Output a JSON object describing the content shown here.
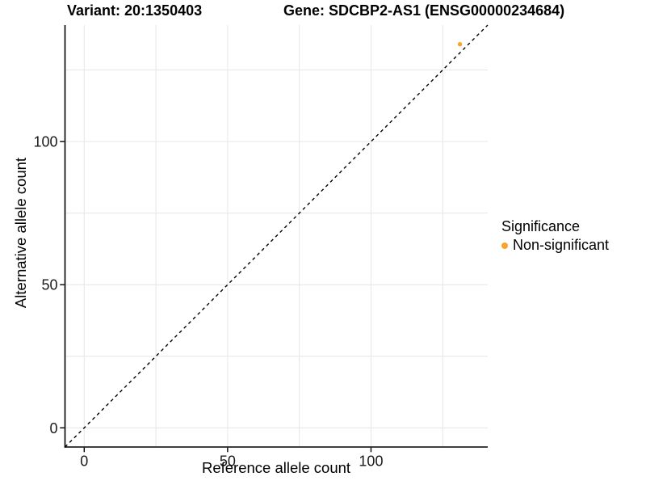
{
  "titles": {
    "variant": "Variant: 20:1350403",
    "gene": "Gene: SDCBP2-AS1 (ENSG00000234684)"
  },
  "chart_data": {
    "type": "scatter",
    "xlabel": "Reference allele count",
    "ylabel": "Alternative allele count",
    "xlim": [
      -6.7,
      140.7
    ],
    "ylim": [
      -6.7,
      140.7
    ],
    "xticks": [
      0,
      50,
      100
    ],
    "yticks": [
      0,
      50,
      100
    ],
    "grid_step": 25,
    "grid_color": "#e6e6e6",
    "axis_color": "#000000",
    "identity_line": {
      "style": "dashed",
      "slope": 1,
      "intercept": 0,
      "color": "#000000"
    },
    "points": [
      {
        "x": 131,
        "y": 134,
        "significance": "Non-significant",
        "color": "#f9a32b"
      }
    ],
    "legend": {
      "title": "Significance",
      "position": "right",
      "items": [
        {
          "label": "Non-significant",
          "color": "#f9a32b"
        }
      ]
    }
  }
}
